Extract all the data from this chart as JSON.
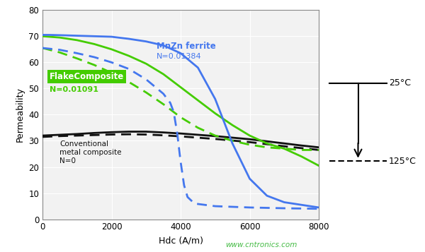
{
  "xlabel": "Hdc (A/m)",
  "ylabel": "Permeability",
  "xlim": [
    0,
    8000
  ],
  "ylim": [
    0,
    80
  ],
  "yticks": [
    0,
    10,
    20,
    30,
    40,
    50,
    60,
    70,
    80
  ],
  "xticks": [
    0,
    2000,
    4000,
    6000,
    8000
  ],
  "bg_color": "#f2f2f2",
  "grid_color": "#ffffff",
  "watermark": "www.cntronics.com",
  "watermark_color": "#44bb44",
  "label_25": "25°C",
  "label_125": "125°C",
  "mnzn_label_line1": "MnZn ferrite",
  "mnzn_label_line2": "N=0.01384",
  "flake_label_box": "FlakeComposite",
  "flake_label_n": "N=0.01091",
  "conv_label": "Conventional\nmetal composite\nN=0",
  "mnzn_color": "#4477ee",
  "flake_color": "#44cc00",
  "conv_color": "#111111",
  "mnzn_solid_x": [
    0,
    200,
    500,
    1000,
    1500,
    2000,
    2500,
    3000,
    3500,
    4000,
    4500,
    5000,
    5500,
    6000,
    6500,
    7000,
    7500,
    8000
  ],
  "mnzn_solid_y": [
    70.5,
    70.5,
    70.4,
    70.2,
    70.0,
    69.8,
    69.0,
    68.0,
    66.5,
    63.5,
    58.0,
    46.0,
    29.0,
    15.5,
    9.0,
    6.5,
    5.5,
    4.5
  ],
  "mnzn_dashed_x": [
    0,
    500,
    1000,
    1500,
    2000,
    2500,
    3000,
    3500,
    3700,
    3800,
    3900,
    4000,
    4100,
    4200,
    4400,
    5000,
    6000,
    7000,
    8000
  ],
  "mnzn_dashed_y": [
    65.5,
    64.8,
    63.5,
    62.0,
    60.0,
    57.5,
    53.5,
    48.0,
    44.5,
    41.0,
    33.0,
    22.0,
    13.0,
    8.5,
    6.0,
    5.0,
    4.5,
    4.2,
    4.0
  ],
  "flake_solid_x": [
    0,
    200,
    500,
    1000,
    1500,
    2000,
    2500,
    3000,
    3500,
    4000,
    4500,
    5000,
    5500,
    6000,
    6500,
    7000,
    7500,
    8000
  ],
  "flake_solid_y": [
    70.0,
    69.8,
    69.5,
    68.5,
    67.0,
    65.0,
    62.5,
    59.5,
    55.5,
    50.5,
    45.5,
    40.5,
    36.0,
    32.0,
    29.0,
    27.0,
    24.0,
    20.5
  ],
  "flake_dashed_x": [
    0,
    500,
    1000,
    1500,
    2000,
    2500,
    3000,
    3500,
    4000,
    4500,
    5000,
    5500,
    6000,
    6500,
    7000,
    7500,
    8000
  ],
  "flake_dashed_y": [
    65.5,
    63.8,
    61.5,
    59.0,
    56.0,
    52.5,
    48.5,
    44.0,
    39.0,
    35.0,
    32.0,
    30.0,
    28.5,
    27.5,
    27.0,
    26.5,
    26.5
  ],
  "conv_solid_x": [
    0,
    500,
    1000,
    1500,
    2000,
    2500,
    3000,
    3500,
    4000,
    4500,
    5000,
    5500,
    6000,
    6500,
    7000,
    7500,
    8000
  ],
  "conv_solid_y": [
    32.0,
    32.3,
    32.6,
    33.0,
    33.3,
    33.5,
    33.5,
    33.2,
    32.8,
    32.3,
    31.8,
    31.2,
    30.6,
    29.8,
    29.0,
    28.2,
    27.5
  ],
  "conv_dashed_x": [
    0,
    500,
    1000,
    1500,
    2000,
    2500,
    3000,
    3500,
    4000,
    4500,
    5000,
    5500,
    6000,
    6500,
    7000,
    7500,
    8000
  ],
  "conv_dashed_y": [
    31.5,
    31.8,
    32.0,
    32.2,
    32.4,
    32.5,
    32.4,
    32.1,
    31.7,
    31.2,
    30.7,
    30.1,
    29.5,
    28.7,
    27.9,
    27.2,
    26.5
  ]
}
